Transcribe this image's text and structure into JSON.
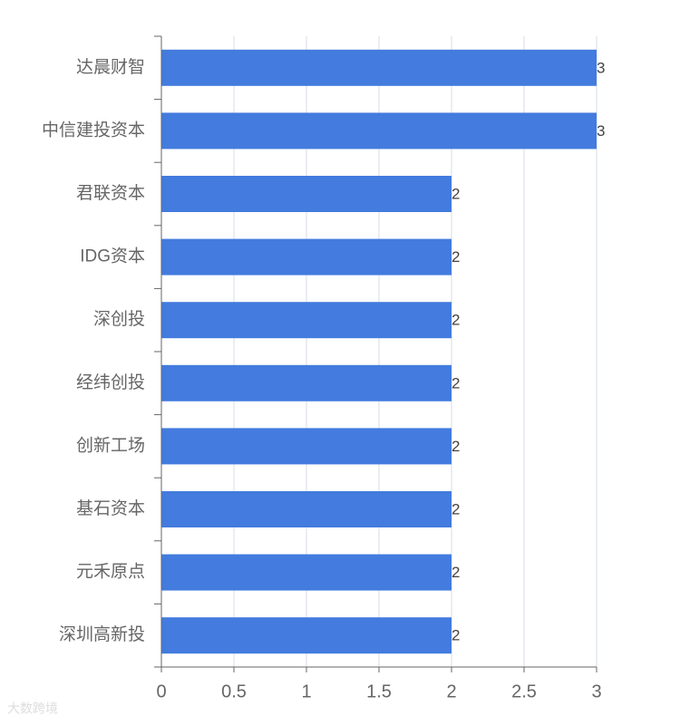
{
  "chart_data": {
    "type": "bar",
    "orientation": "horizontal",
    "categories": [
      "达晨财智",
      "中信建投资本",
      "君联资本",
      "IDG资本",
      "深创投",
      "经纬创投",
      "创新工场",
      "基石资本",
      "元禾原点",
      "深圳高新投"
    ],
    "values": [
      3,
      3,
      2,
      2,
      2,
      2,
      2,
      2,
      2,
      2
    ],
    "color": "#437bde",
    "xlim": [
      0,
      3
    ],
    "xticks": [
      0,
      0.5,
      1,
      1.5,
      2,
      2.5,
      3
    ],
    "grid": true,
    "watermark": "大数跨境"
  }
}
